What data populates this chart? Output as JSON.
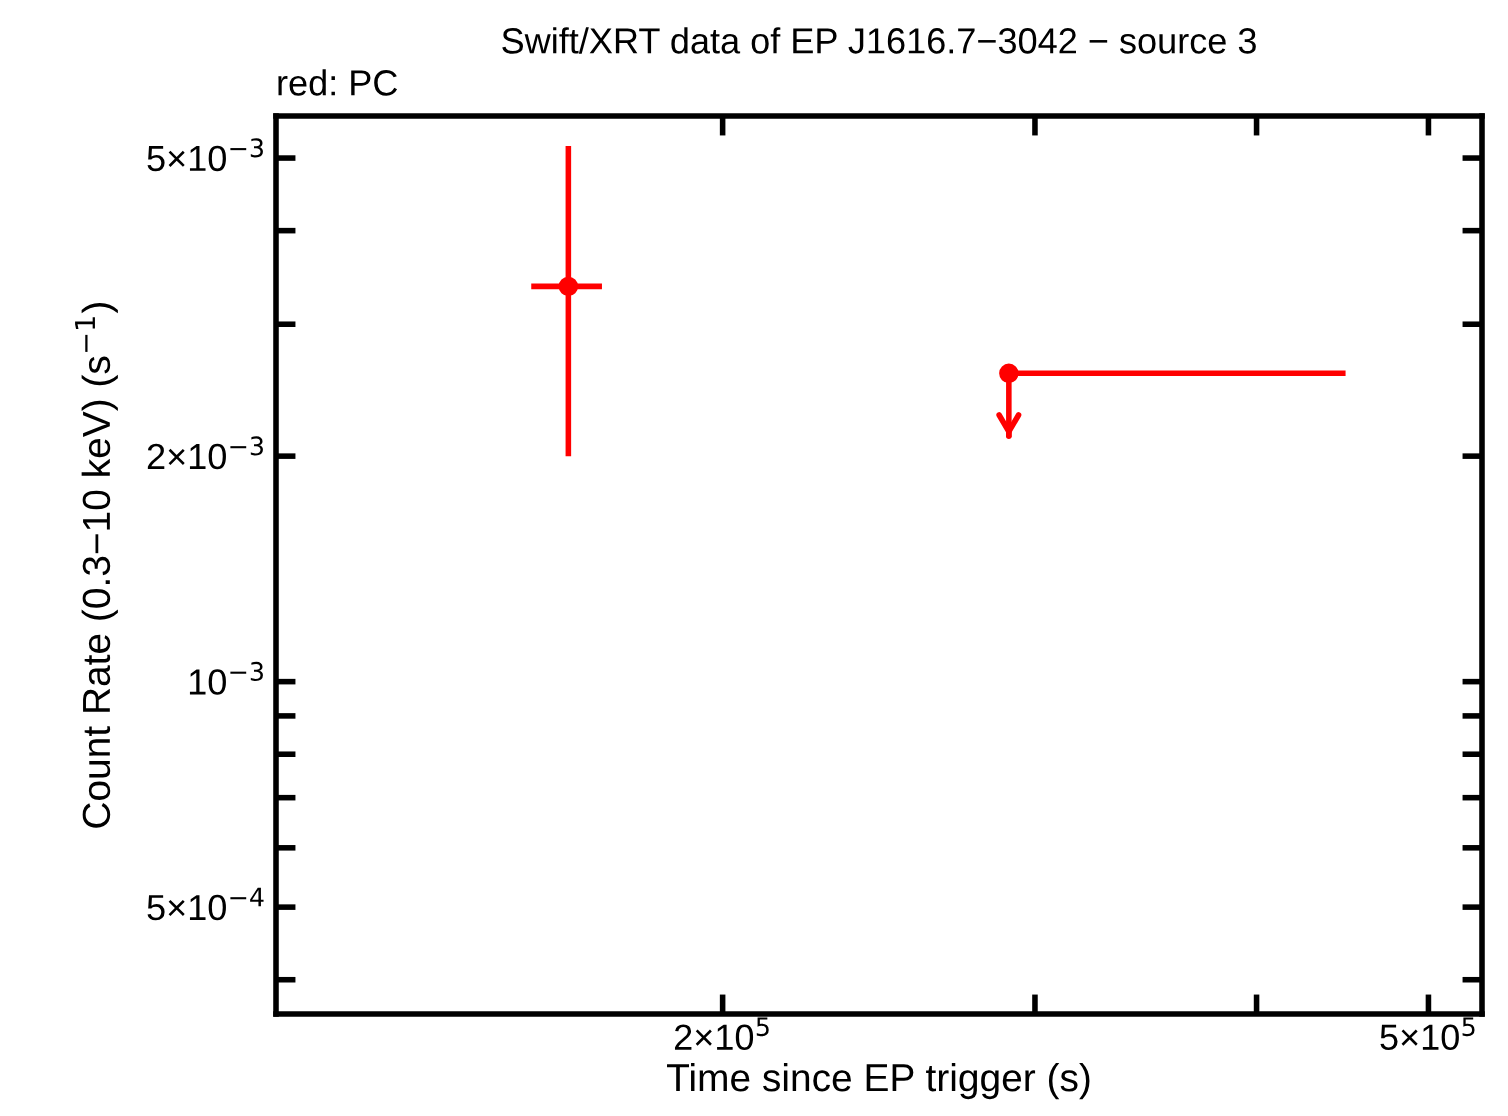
{
  "chart_data": {
    "type": "scatter",
    "title": "Swift/XRT data of EP J1616.7−3042 − source 3",
    "annotations": [
      "red: PC"
    ],
    "xlabel": "Time since EP trigger (s)",
    "ylabel": "Count Rate (0.3−10 keV) (s$^{−1}$)",
    "log": "xy",
    "grid": false,
    "legend": false,
    "xlim": [
      112000,
      536000
    ],
    "ylim": [
      0.00036,
      0.00569
    ],
    "xticks": [
      {
        "value": 200000,
        "label": "2×10$^{5}$"
      },
      {
        "value": 300000,
        "label": null
      },
      {
        "value": 400000,
        "label": null
      },
      {
        "value": 500000,
        "label": "5×10$^{5}$"
      }
    ],
    "yticks": [
      {
        "value": 0.0004,
        "label": null
      },
      {
        "value": 0.0005,
        "label": "5×10$^{−4}$"
      },
      {
        "value": 0.0006,
        "label": null
      },
      {
        "value": 0.0007,
        "label": null
      },
      {
        "value": 0.0008,
        "label": null
      },
      {
        "value": 0.0009,
        "label": null
      },
      {
        "value": 0.001,
        "label": "10$^{−3}$"
      },
      {
        "value": 0.002,
        "label": "2×10$^{−3}$"
      },
      {
        "value": 0.003,
        "label": null
      },
      {
        "value": 0.004,
        "label": null
      },
      {
        "value": 0.005,
        "label": "5×10$^{−3}$"
      }
    ],
    "series": [
      {
        "color": "#ff0000",
        "x": [
          163700
        ],
        "values": [
          0.00337
        ],
        "errors": [
          [
            0.002,
            0.00519
          ]
        ],
        "xerrors": [
          [
            156000,
            171000
          ]
        ]
      },
      {
        "color": "#ff0000",
        "x": [
          290000
        ],
        "values": [
          0.00258
        ],
        "errors": [
          [
            0.00212,
            0.00258
          ]
        ],
        "xerrors": [
          [
            290000,
            449000
          ]
        ]
      }
    ]
  }
}
